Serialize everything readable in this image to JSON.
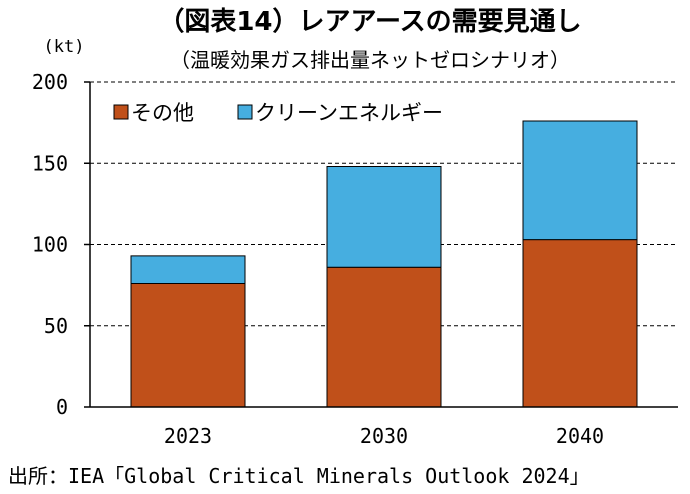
{
  "chart_data": {
    "type": "bar",
    "stacked": true,
    "title": "（図表14）レアアースの需要見通し",
    "subtitle": "（温暖効果ガス排出量ネットゼロシナリオ）",
    "ylabel": "(kt)",
    "xlabel": "",
    "categories": [
      "2023",
      "2030",
      "2040"
    ],
    "series": [
      {
        "name": "その他",
        "color": "#C0501A",
        "values": [
          76,
          86,
          103
        ]
      },
      {
        "name": "クリーンエネルギー",
        "color": "#46AEE0",
        "values": [
          17,
          62,
          73
        ]
      }
    ],
    "ylim": [
      0,
      200
    ],
    "yticks": [
      0,
      50,
      100,
      150,
      200
    ],
    "grid": true,
    "legend": "top-left",
    "source": "出所：IEA「Global Critical Minerals Outlook 2024」"
  }
}
